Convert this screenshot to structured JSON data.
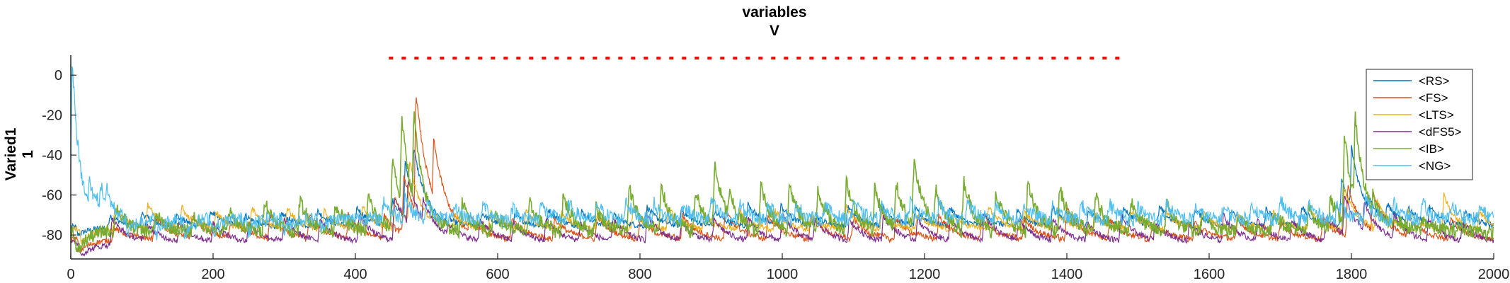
{
  "chart_data": {
    "type": "line",
    "title": "variables",
    "subtitle": "V",
    "xlabel": "",
    "ylabel": "Varied1",
    "ylabel_sub": "1",
    "xlim": [
      0,
      2000
    ],
    "ylim": [
      -92,
      10
    ],
    "xticks": [
      0,
      200,
      400,
      600,
      800,
      1000,
      1200,
      1400,
      1600,
      1800,
      2000
    ],
    "yticks": [
      0,
      -20,
      -40,
      -60,
      -80
    ],
    "grid": false,
    "legend_position": "top-right",
    "stimulus_marker": {
      "x_start": 450,
      "x_end": 1485,
      "y": 8.5,
      "color": "#ff0000"
    },
    "series": [
      {
        "name": "<RS>",
        "color": "#0072BD",
        "baseline": -76,
        "spike_amp": 10,
        "tail": 18,
        "x": [
          10,
          55,
          100,
          148,
          197,
          245,
          296,
          347,
          402,
          452,
          470,
          482,
          500,
          532,
          578,
          624,
          671,
          718,
          763,
          810,
          858,
          905,
          952,
          998,
          1045,
          1092,
          1140,
          1187,
          1235,
          1283,
          1330,
          1380,
          1430,
          1480,
          1530,
          1580,
          1630,
          1680,
          1730,
          1786,
          1800,
          1824,
          1850,
          1880,
          1910,
          1960
        ],
        "y": [
          -80,
          -70,
          -69,
          -70,
          -68,
          -70,
          -69,
          -68,
          -66,
          -62,
          -44,
          -36,
          -64,
          -72,
          -69,
          -70,
          -67,
          -68,
          -70,
          -66,
          -67,
          -68,
          -64,
          -65,
          -70,
          -66,
          -65,
          -67,
          -66,
          -70,
          -68,
          -66,
          -67,
          -66,
          -66,
          -67,
          -68,
          -67,
          -66,
          -52,
          -36,
          -60,
          -64,
          -66,
          -66,
          -68
        ]
      },
      {
        "name": "<FS>",
        "color": "#D95319",
        "baseline": -82,
        "spike_amp": 13,
        "tail": 20,
        "x": [
          12,
          60,
          118,
          170,
          225,
          280,
          335,
          390,
          440,
          468,
          485,
          510,
          560,
          620,
          680,
          740,
          800,
          860,
          920,
          980,
          1040,
          1100,
          1160,
          1220,
          1280,
          1340,
          1400,
          1460,
          1520,
          1580,
          1640,
          1700,
          1760,
          1795,
          1830,
          1880,
          1940
        ],
        "y": [
          -88,
          -76,
          -70,
          -70,
          -70,
          -70,
          -70,
          -70,
          -70,
          -50,
          -8,
          -32,
          -70,
          -72,
          -72,
          -70,
          -72,
          -70,
          -68,
          -70,
          -70,
          -72,
          -72,
          -70,
          -72,
          -72,
          -66,
          -72,
          -74,
          -74,
          -72,
          -74,
          -72,
          -56,
          -58,
          -70,
          -72
        ]
      },
      {
        "name": "<LTS>",
        "color": "#EDB120",
        "baseline": -77,
        "spike_amp": 9,
        "tail": 16,
        "x": [
          15,
          62,
          108,
          156,
          204,
          254,
          304,
          356,
          410,
          456,
          476,
          505,
          540,
          590,
          640,
          690,
          740,
          790,
          840,
          890,
          940,
          990,
          1040,
          1090,
          1140,
          1190,
          1240,
          1290,
          1340,
          1390,
          1440,
          1490,
          1540,
          1590,
          1640,
          1690,
          1740,
          1790,
          1835,
          1880,
          1930,
          1980
        ],
        "y": [
          -84,
          -66,
          -64,
          -66,
          -68,
          -66,
          -66,
          -68,
          -66,
          -62,
          -42,
          -66,
          -70,
          -68,
          -68,
          -68,
          -70,
          -68,
          -66,
          -70,
          -68,
          -68,
          -70,
          -66,
          -68,
          -70,
          -70,
          -66,
          -68,
          -70,
          -70,
          -68,
          -68,
          -68,
          -70,
          -68,
          -66,
          -56,
          -62,
          -68,
          -60,
          -68
        ]
      },
      {
        "name": "<dFS5>",
        "color": "#7E2F8E",
        "baseline": -84,
        "spike_amp": 11,
        "tail": 22,
        "x": [
          14,
          58,
          105,
          152,
          200,
          250,
          300,
          350,
          405,
          455,
          474,
          495,
          530,
          575,
          622,
          668,
          716,
          762,
          810,
          858,
          904,
          952,
          1000,
          1046,
          1094,
          1142,
          1190,
          1236,
          1284,
          1332,
          1380,
          1428,
          1476,
          1524,
          1572,
          1620,
          1668,
          1716,
          1764,
          1790,
          1818,
          1860,
          1908,
          1956
        ],
        "y": [
          -90,
          -72,
          -74,
          -74,
          -74,
          -74,
          -72,
          -72,
          -70,
          -60,
          -52,
          -62,
          -74,
          -72,
          -74,
          -72,
          -74,
          -72,
          -70,
          -74,
          -72,
          -72,
          -70,
          -72,
          -72,
          -70,
          -72,
          -72,
          -70,
          -72,
          -72,
          -74,
          -70,
          -74,
          -74,
          -70,
          -72,
          -72,
          -70,
          -60,
          -64,
          -70,
          -72,
          -74
        ]
      },
      {
        "name": "<IB>",
        "color": "#77AC30",
        "baseline": -78,
        "spike_amp": 10,
        "tail": 14,
        "x": [
          8,
          64,
          120,
          172,
          222,
          272,
          322,
          372,
          418,
          452,
          465,
          482,
          505,
          550,
          595,
          645,
          692,
          738,
          785,
          830,
          878,
          905,
          925,
          970,
          1010,
          1050,
          1090,
          1130,
          1160,
          1185,
          1215,
          1255,
          1300,
          1345,
          1390,
          1440,
          1490,
          1540,
          1590,
          1640,
          1690,
          1740,
          1770,
          1790,
          1805,
          1830,
          1860,
          1900,
          1950,
          1990
        ],
        "y": [
          -90,
          -66,
          -70,
          -70,
          -68,
          -62,
          -62,
          -64,
          -60,
          -40,
          -20,
          -18,
          -66,
          -64,
          -68,
          -64,
          -60,
          -66,
          -56,
          -56,
          -58,
          -44,
          -58,
          -54,
          -54,
          -56,
          -52,
          -56,
          -54,
          -42,
          -56,
          -52,
          -58,
          -54,
          -56,
          -60,
          -62,
          -64,
          -70,
          -70,
          -68,
          -66,
          -60,
          -30,
          -18,
          -60,
          -70,
          -72,
          -76,
          -80
        ]
      },
      {
        "name": "<NG>",
        "color": "#4DBEEE",
        "baseline": -72,
        "spike_amp": 7,
        "tail": 10,
        "x": [
          2,
          5,
          10,
          18,
          26,
          34,
          42,
          50,
          60,
          80,
          120,
          160,
          200,
          250,
          300,
          350,
          400,
          440,
          470,
          500,
          540,
          580,
          620,
          660,
          700,
          740,
          780,
          820,
          860,
          900,
          940,
          980,
          1020,
          1060,
          1100,
          1140,
          1180,
          1220,
          1260,
          1300,
          1340,
          1380,
          1420,
          1460,
          1500,
          1540,
          1580,
          1620,
          1660,
          1700,
          1740,
          1780,
          1820,
          1860,
          1900,
          1940,
          1980
        ],
        "y": [
          9,
          -60,
          -48,
          -56,
          -52,
          -58,
          -54,
          -56,
          -72,
          -80,
          -80,
          -80,
          -79,
          -78,
          -78,
          -76,
          -70,
          -62,
          -60,
          -64,
          -66,
          -64,
          -66,
          -64,
          -64,
          -64,
          -62,
          -64,
          -64,
          -62,
          -64,
          -64,
          -64,
          -64,
          -62,
          -64,
          -64,
          -64,
          -62,
          -64,
          -64,
          -66,
          -64,
          -64,
          -66,
          -64,
          -66,
          -66,
          -64,
          -62,
          -64,
          -62,
          -62,
          -64,
          -64,
          -64,
          -66
        ]
      }
    ]
  }
}
